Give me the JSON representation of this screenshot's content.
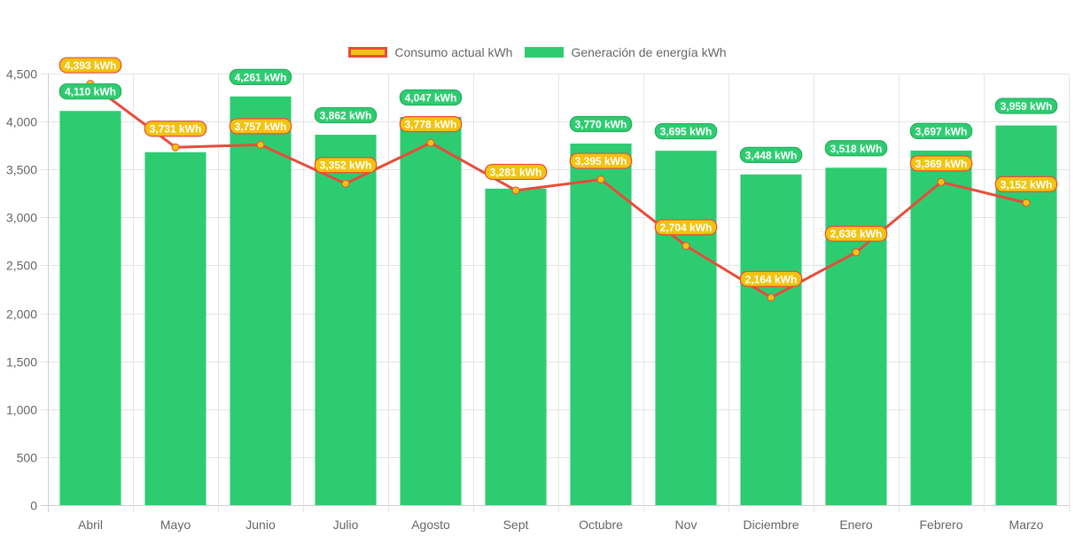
{
  "chart_data": {
    "type": "bar",
    "title": "",
    "xlabel": "",
    "ylabel": "",
    "ylim": [
      0,
      4500
    ],
    "y_ticks": [
      0,
      500,
      1000,
      1500,
      2000,
      2500,
      3000,
      3500,
      4000,
      4500
    ],
    "y_tick_labels": [
      "0",
      "500",
      "1,000",
      "1,500",
      "2,000",
      "2,500",
      "3,000",
      "3,500",
      "4,000",
      "4,500"
    ],
    "grid": true,
    "legend_position": "top-center",
    "categories": [
      "Abril",
      "Mayo",
      "Junio",
      "Julio",
      "Agosto",
      "Sept",
      "Octubre",
      "Nov",
      "Diciembre",
      "Enero",
      "Febrero",
      "Marzo"
    ],
    "unit_suffix": " kWh",
    "series": [
      {
        "name": "Consumo actual kWh",
        "type": "line",
        "color": "#e74c3c",
        "fill": "#f1c40f",
        "values": [
          4393,
          3731,
          3757,
          3352,
          3778,
          3281,
          3395,
          2704,
          2164,
          2636,
          3369,
          3152
        ],
        "labels": [
          "4,393 kWh",
          "3,731 kWh",
          "3,757 kWh",
          "3,352 kWh",
          "3,778 kWh",
          "3,281 kWh",
          "3,395 kWh",
          "2,704 kWh",
          "2,164 kWh",
          "2,636 kWh",
          "3,369 kWh",
          "3,152 kWh"
        ]
      },
      {
        "name": "Generación de energía kWh",
        "type": "bar",
        "color": "#2ecc71",
        "values": [
          4110,
          3680,
          4261,
          3862,
          4047,
          3300,
          3770,
          3695,
          3448,
          3518,
          3697,
          3959
        ],
        "labels": [
          "4,110 kWh",
          "",
          "4,261 kWh",
          "3,862 kWh",
          "4,047 kWh",
          "",
          "3,770 kWh",
          "3,695 kWh",
          "3,448 kWh",
          "3,518 kWh",
          "3,697 kWh",
          "3,959 kWh"
        ]
      }
    ]
  }
}
